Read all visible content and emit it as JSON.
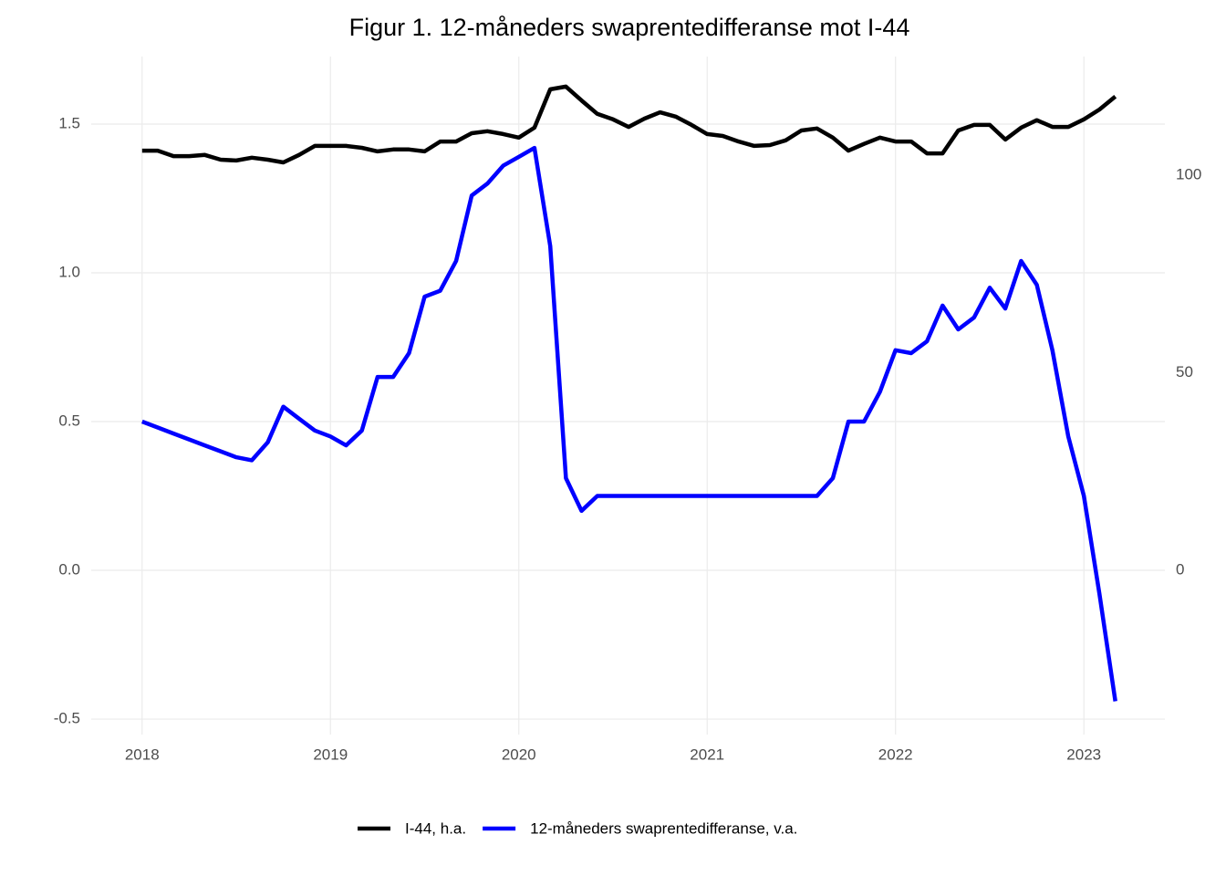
{
  "chart_data": {
    "type": "line",
    "title": "Figur 1. 12-måneders swaprentedifferanse mot I-44",
    "x": [
      2018,
      2018.083,
      2018.167,
      2018.25,
      2018.333,
      2018.417,
      2018.5,
      2018.583,
      2018.667,
      2018.75,
      2018.833,
      2018.917,
      2019,
      2019.083,
      2019.167,
      2019.25,
      2019.333,
      2019.417,
      2019.5,
      2019.583,
      2019.667,
      2019.75,
      2019.833,
      2019.917,
      2020,
      2020.083,
      2020.167,
      2020.25,
      2020.333,
      2020.417,
      2020.5,
      2020.583,
      2020.667,
      2020.75,
      2020.833,
      2020.917,
      2021,
      2021.083,
      2021.167,
      2021.25,
      2021.333,
      2021.417,
      2021.5,
      2021.583,
      2021.667,
      2021.75,
      2021.833,
      2021.917,
      2022,
      2022.083,
      2022.167,
      2022.25,
      2022.333,
      2022.417,
      2022.5,
      2022.583,
      2022.667,
      2022.75,
      2022.833,
      2022.917,
      2023,
      2023.083,
      2023.167
    ],
    "series": [
      {
        "name": "I-44, h.a.",
        "color": "#000000",
        "axis": "y2",
        "values": [
          106.2,
          106.2,
          104.8,
          104.8,
          105.1,
          103.9,
          103.7,
          104.4,
          103.9,
          103.2,
          105.1,
          107.4,
          107.4,
          107.4,
          106.9,
          106.0,
          106.5,
          106.5,
          106.0,
          108.5,
          108.5,
          110.6,
          111.1,
          110.4,
          109.5,
          112.0,
          121.7,
          122.4,
          118.9,
          115.5,
          114.1,
          112.2,
          114.3,
          115.9,
          114.8,
          112.7,
          110.4,
          109.9,
          108.5,
          107.4,
          107.6,
          108.8,
          111.3,
          111.8,
          109.5,
          106.2,
          107.9,
          109.5,
          108.5,
          108.5,
          105.5,
          105.5,
          111.3,
          112.7,
          112.7,
          109.0,
          112.0,
          113.9,
          112.2,
          112.2,
          114.1,
          116.6,
          119.9
        ]
      },
      {
        "name": "12-måneders swaprentedifferanse, v.a.",
        "color": "#0000ff",
        "values": [
          0.5,
          0.48,
          0.46,
          0.44,
          0.42,
          0.4,
          0.38,
          0.37,
          0.43,
          0.55,
          0.51,
          0.47,
          0.45,
          0.42,
          0.47,
          0.65,
          0.65,
          0.73,
          0.92,
          0.94,
          1.04,
          1.26,
          1.3,
          1.36,
          1.39,
          1.42,
          1.09,
          0.31,
          0.2,
          0.25,
          0.25,
          0.25,
          0.25,
          0.25,
          0.25,
          0.25,
          0.25,
          0.25,
          0.25,
          0.25,
          0.25,
          0.25,
          0.25,
          0.25,
          0.31,
          0.5,
          0.5,
          0.6,
          0.74,
          0.73,
          0.77,
          0.89,
          0.81,
          0.85,
          0.95,
          0.88,
          1.04,
          0.96,
          0.74,
          0.45,
          0.25,
          -0.08,
          -0.44
        ]
      }
    ],
    "xlim": [
      2017.73,
      2023.43
    ],
    "xticks": [
      2018,
      2019,
      2020,
      2021,
      2022,
      2023
    ],
    "ylim": [
      -0.552,
      1.727
    ],
    "yticks": [
      -0.5,
      {
        "value": 0,
        "label": "0.0"
      },
      0.5,
      {
        "value": 1,
        "label": "1.0"
      },
      1.5
    ],
    "y2lim": [
      -41.6,
      130
    ],
    "y2ticks": [
      0,
      50,
      100
    ],
    "grid": true,
    "legend": "bottom"
  }
}
